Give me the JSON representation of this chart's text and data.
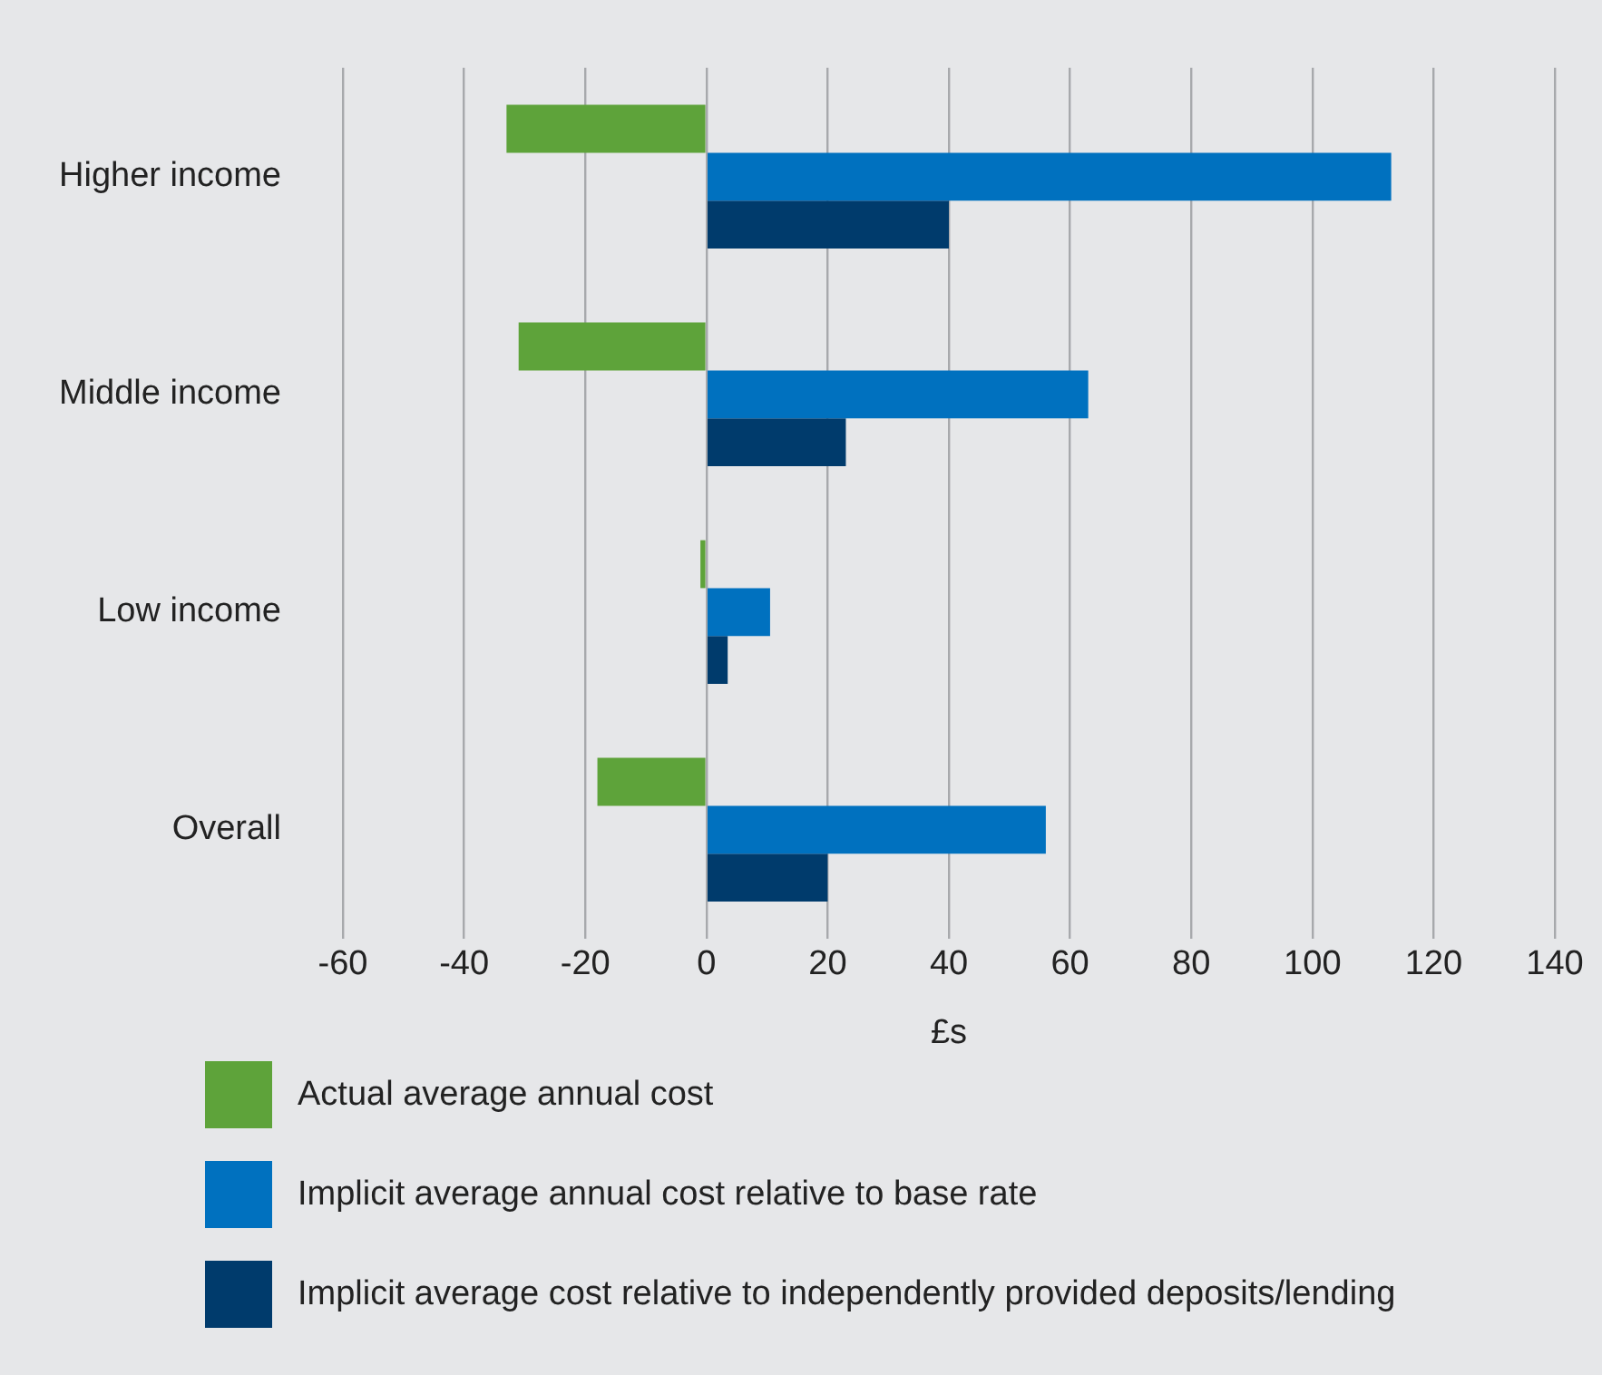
{
  "chart_data": {
    "type": "bar",
    "orientation": "horizontal",
    "xlabel": "£s",
    "categories": [
      "Higher income",
      "Middle income",
      "Low income",
      "Overall"
    ],
    "series": [
      {
        "name": "Actual average annual cost",
        "color": "#5ea33a",
        "values": [
          -33,
          -31,
          -1,
          -18
        ]
      },
      {
        "name": "Implicit average annual cost relative to base rate",
        "color": "#0071bf",
        "values": [
          113,
          63,
          10.5,
          56
        ]
      },
      {
        "name": "Implicit average cost relative to independently provided deposits/lending",
        "color": "#003b6c",
        "values": [
          40,
          23,
          3.5,
          20
        ]
      }
    ],
    "xlim": [
      -60,
      140
    ],
    "xticks": [
      -60,
      -40,
      -20,
      0,
      20,
      40,
      60,
      80,
      100,
      120,
      140
    ],
    "grid": "x",
    "legend": "bottom"
  }
}
